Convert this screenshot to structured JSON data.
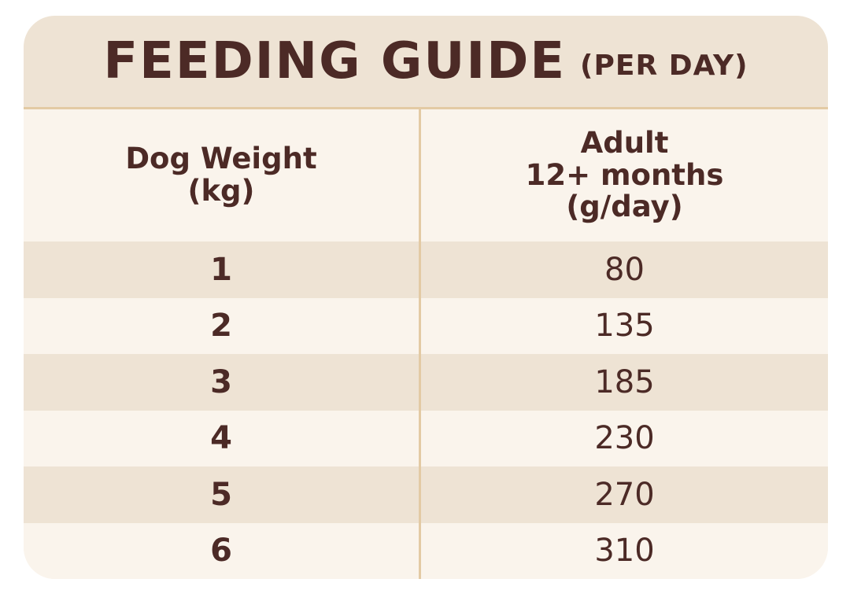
{
  "title": {
    "main": "FEEDING GUIDE",
    "sub": "(PER DAY)"
  },
  "table": {
    "headers": [
      "Dog Weight\n(kg)",
      "Adult\n12+ months\n(g/day)"
    ],
    "rows": [
      {
        "weight": "1",
        "amount": "80"
      },
      {
        "weight": "2",
        "amount": "135"
      },
      {
        "weight": "3",
        "amount": "185"
      },
      {
        "weight": "4",
        "amount": "230"
      },
      {
        "weight": "5",
        "amount": "270"
      },
      {
        "weight": "6",
        "amount": "310"
      }
    ]
  },
  "colors": {
    "text": "#4c2a26",
    "band": "#eee3d4",
    "background": "#faf4ec",
    "rule": "#e3caa4"
  }
}
